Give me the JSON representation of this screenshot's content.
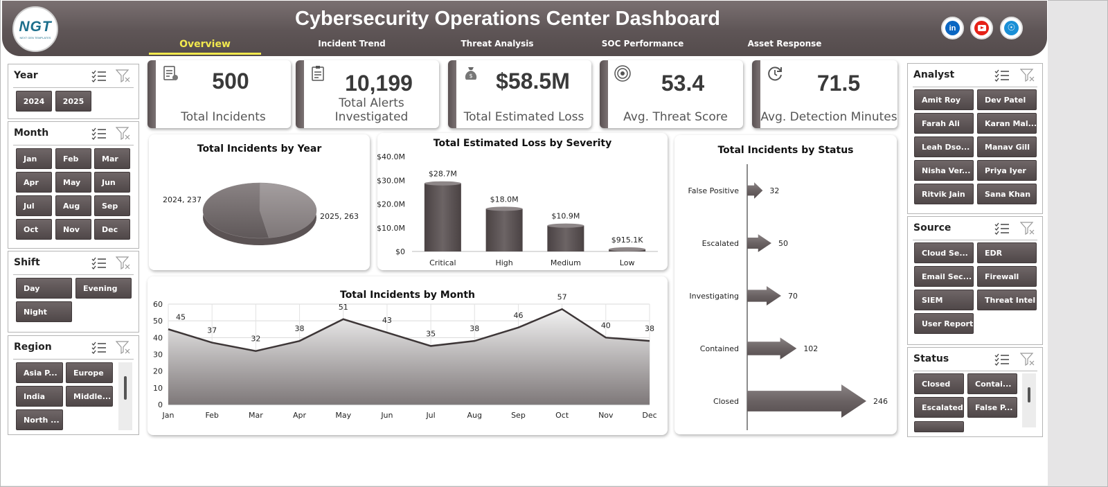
{
  "header": {
    "title": "Cybersecurity Operations Center Dashboard",
    "logo_text": "NGT",
    "logo_sub": "NEXT GEN TEMPLATES",
    "tabs": [
      "Overview",
      "Incident Trend",
      "Threat Analysis",
      "SOC Performance",
      "Asset Response"
    ],
    "active_tab": "Overview",
    "social_icons": [
      "linkedin-icon",
      "youtube-icon",
      "globe-icon"
    ],
    "linkedin_text": "in"
  },
  "slicers": {
    "year": {
      "title": "Year",
      "items": [
        "2024",
        "2025"
      ]
    },
    "month": {
      "title": "Month",
      "items": [
        "Jan",
        "Feb",
        "Mar",
        "Apr",
        "May",
        "Jun",
        "Jul",
        "Aug",
        "Sep",
        "Oct",
        "Nov",
        "Dec"
      ]
    },
    "shift": {
      "title": "Shift",
      "items": [
        "Day",
        "Evening",
        "Night"
      ]
    },
    "region": {
      "title": "Region",
      "items": [
        "Asia P...",
        "Europe",
        "India",
        "Middle...",
        "North ..."
      ]
    },
    "analyst": {
      "title": "Analyst",
      "items": [
        "Amit Roy",
        "Dev Patel",
        "Farah Ali",
        "Karan Mal...",
        "Leah Dso...",
        "Manav Gill",
        "Nisha Ver...",
        "Priya Iyer",
        "Ritvik Jain",
        "Sana Khan"
      ]
    },
    "source": {
      "title": "Source",
      "items": [
        "Cloud Se...",
        "EDR",
        "Email Sec...",
        "Firewall",
        "SIEM",
        "Threat Intel",
        "User Report"
      ]
    },
    "status": {
      "title": "Status",
      "items": [
        "Closed",
        "Contai...",
        "Escalated",
        "False P..."
      ]
    }
  },
  "kpis": [
    {
      "value": "500",
      "label": "Total Incidents",
      "icon": "report-icon"
    },
    {
      "value": "10,199",
      "label": "Total Alerts Investigated",
      "icon": "clipboard-icon"
    },
    {
      "value": "$58.5M",
      "label": "Total Estimated Loss",
      "icon": "money-bag-icon"
    },
    {
      "value": "53.4",
      "label": "Avg. Threat Score",
      "icon": "target-icon"
    },
    {
      "value": "71.5",
      "label": "Avg. Detection Minutes",
      "icon": "refresh-clock-icon"
    }
  ],
  "chart_data": [
    {
      "type": "pie",
      "title": "Total Incidents by Year",
      "categories": [
        "2024",
        "2025"
      ],
      "values": [
        237,
        263
      ],
      "data_labels": [
        "2024, 237",
        "2025, 263"
      ]
    },
    {
      "type": "bar",
      "title": "Total Estimated Loss by Severity",
      "categories": [
        "Critical",
        "High",
        "Medium",
        "Low"
      ],
      "values": [
        28.7,
        18.0,
        10.9,
        0.9151
      ],
      "data_labels": [
        "$28.7M",
        "$18.0M",
        "$10.9M",
        "$915.1K"
      ],
      "ylim": [
        0,
        40
      ],
      "yticks": [
        "$0",
        "$10.0M",
        "$20.0M",
        "$30.0M",
        "$40.0M"
      ]
    },
    {
      "type": "bar",
      "title": "Total Incidents by Status",
      "categories": [
        "False Positive",
        "Escalated",
        "Investigating",
        "Contained",
        "Closed"
      ],
      "values": [
        32,
        50,
        70,
        102,
        246
      ]
    },
    {
      "type": "area",
      "title": "Total Incidents by Month",
      "categories": [
        "Jan",
        "Feb",
        "Mar",
        "Apr",
        "May",
        "Jun",
        "Jul",
        "Aug",
        "Sep",
        "Oct",
        "Nov",
        "Dec"
      ],
      "values": [
        45,
        37,
        32,
        38,
        51,
        43,
        35,
        38,
        46,
        57,
        40,
        38
      ],
      "ylim": [
        0,
        60
      ],
      "yticks": [
        "0",
        "10",
        "20",
        "30",
        "40",
        "50",
        "60"
      ],
      "grid": true
    }
  ]
}
